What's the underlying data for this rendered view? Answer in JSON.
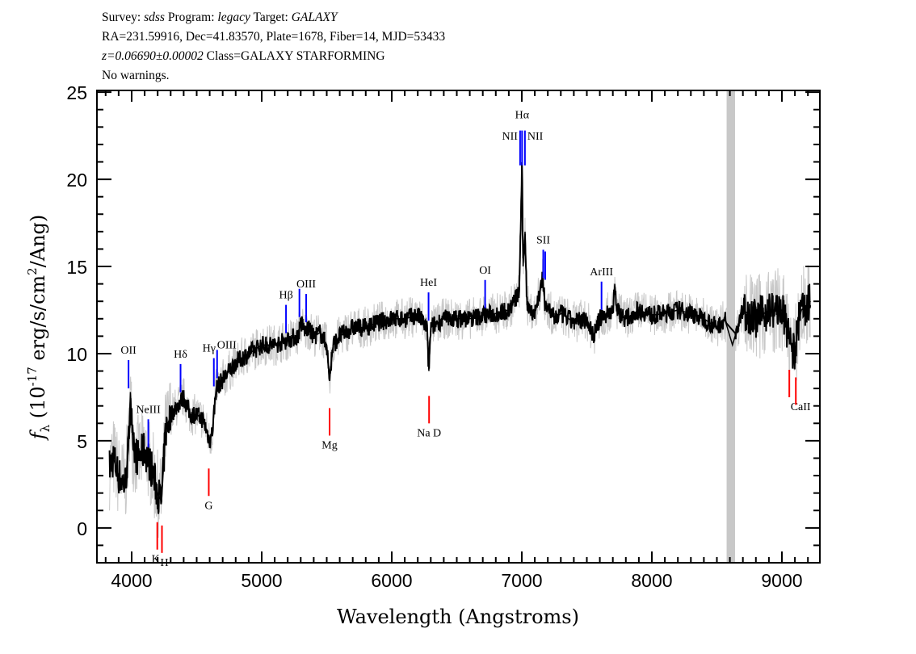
{
  "header": {
    "line1": {
      "survey_label": "Survey:",
      "survey": "sdss",
      "program_label": "Program:",
      "program": "legacy",
      "target_label": "Target:",
      "target": "GALAXY"
    },
    "line2": "RA=231.59916, Dec=41.83570, Plate=1678, Fiber=14, MJD=53433",
    "line3": {
      "z": "z=0.06690±0.00002",
      "class": "Class=GALAXY STARFORMING"
    },
    "line4": "No warnings."
  },
  "chart_data": {
    "type": "line",
    "xlabel": "Wavelength (Angstroms)",
    "ylabel": {
      "f": "f",
      "sub": "λ",
      "pre": " (10",
      "exp": "-17",
      "mid": " erg/s/cm",
      "exp2": "2",
      "post": "/Ang)"
    },
    "xlim": [
      3733,
      9292
    ],
    "ylim": [
      -2,
      25.1
    ],
    "xticks": [
      4000,
      5000,
      6000,
      7000,
      8000,
      9000
    ],
    "xtick_labels": [
      "4000",
      "5000",
      "6000",
      "7000",
      "8000",
      "9000"
    ],
    "yticks": [
      0,
      5,
      10,
      15,
      20,
      25
    ],
    "ytick_labels": [
      "0",
      "5",
      "10",
      "15",
      "20",
      "25"
    ],
    "masked_region": [
      8575,
      8640
    ],
    "colors": {
      "flux": "#000000",
      "noise": "#c8c8c8",
      "emission": "#0000ff",
      "absorption": "#ff0000",
      "mask": "#c8c8c8"
    },
    "series": [
      {
        "x": [
          3830,
          3860,
          3900,
          3950,
          3975,
          3990,
          4010,
          4050,
          4100,
          4150,
          4200,
          4230,
          4245,
          4260,
          4300,
          4350,
          4400,
          4450,
          4500,
          4550,
          4600,
          4620,
          4650,
          4700,
          4750,
          4800,
          4900,
          5000,
          5100,
          5200,
          5280,
          5300,
          5340,
          5350,
          5400,
          5450,
          5500,
          5520,
          5550,
          5600,
          5700,
          5800,
          5900,
          6000,
          6100,
          6200,
          6270,
          6285,
          6300,
          6400,
          6500,
          6600,
          6700,
          6800,
          6900,
          6980,
          7002,
          7010,
          7025,
          7040,
          7100,
          7160,
          7175,
          7250,
          7300,
          7400,
          7500,
          7550,
          7600,
          7700,
          7715,
          7730,
          7800,
          7900,
          8000,
          8100,
          8200,
          8300,
          8400,
          8500,
          8560,
          8620,
          8700,
          8800,
          8900,
          9000,
          9050,
          9100,
          9120,
          9150,
          9200,
          9220
        ],
        "y": [
          3.5,
          4.0,
          3.0,
          2.5,
          4.5,
          7.8,
          4.5,
          4.0,
          4.5,
          3.5,
          2.0,
          1.5,
          3.5,
          5.5,
          6.5,
          7.0,
          7.5,
          6.5,
          6.5,
          6.2,
          5.0,
          5.5,
          8.0,
          8.5,
          9.0,
          9.5,
          10.0,
          10.5,
          10.5,
          10.8,
          11.0,
          11.8,
          11.2,
          11.5,
          11.0,
          11.2,
          10.5,
          8.5,
          10.5,
          11.0,
          11.5,
          11.5,
          11.8,
          12.0,
          12.0,
          12.2,
          11.5,
          9.0,
          11.5,
          12.0,
          12.0,
          12.0,
          12.2,
          12.3,
          12.5,
          13.5,
          20.8,
          15.0,
          17.0,
          12.8,
          12.3,
          14.3,
          13.0,
          12.0,
          12.3,
          11.8,
          12.0,
          11.0,
          12.0,
          12.5,
          14.0,
          12.5,
          12.0,
          12.5,
          12.2,
          12.3,
          12.5,
          12.3,
          12.0,
          11.5,
          12.0,
          10.5,
          12.5,
          12.0,
          12.5,
          12.5,
          11.0,
          9.8,
          11.5,
          12.5,
          12.8,
          13.0
        ]
      }
    ],
    "lines": [
      {
        "label": "OII",
        "wavelength": 3976,
        "type": "emission"
      },
      {
        "label": "NeIII",
        "wavelength": 4128,
        "type": "emission"
      },
      {
        "label": "Hδ",
        "wavelength": 4376,
        "type": "emission"
      },
      {
        "label": "Hγ",
        "wavelength": 4632,
        "type": "emission"
      },
      {
        "label": "OIII",
        "wavelength": 4657,
        "type": "emission"
      },
      {
        "label": "Hβ",
        "wavelength": 5187,
        "type": "emission"
      },
      {
        "label": "OIII",
        "wavelength": 5290,
        "type": "emission",
        "nolabel": true
      },
      {
        "label": "OIII",
        "wavelength": 5342,
        "type": "emission"
      },
      {
        "label": "HeI",
        "wavelength": 6283,
        "type": "emission"
      },
      {
        "label": "OI",
        "wavelength": 6718,
        "type": "emission"
      },
      {
        "label": "NII",
        "wavelength": 6987,
        "type": "emission"
      },
      {
        "label": "Hα",
        "wavelength": 7002,
        "type": "emission"
      },
      {
        "label": "NII",
        "wavelength": 7024,
        "type": "emission"
      },
      {
        "label": "SII",
        "wavelength": 7165,
        "type": "emission"
      },
      {
        "label": "SII",
        "wavelength": 7180,
        "type": "emission",
        "nolabel": true
      },
      {
        "label": "ArIII",
        "wavelength": 7613,
        "type": "emission"
      },
      {
        "label": "K",
        "wavelength": 4197,
        "type": "absorption"
      },
      {
        "label": "H",
        "wavelength": 4233,
        "type": "absorption"
      },
      {
        "label": "G",
        "wavelength": 4593,
        "type": "absorption"
      },
      {
        "label": "Mg",
        "wavelength": 5522,
        "type": "absorption"
      },
      {
        "label": "Na D",
        "wavelength": 6287,
        "type": "absorption"
      },
      {
        "label": "CaII",
        "wavelength": 9057,
        "type": "absorption"
      },
      {
        "label": "CaII",
        "wavelength": 9107,
        "type": "absorption",
        "nolabel": true
      }
    ]
  }
}
